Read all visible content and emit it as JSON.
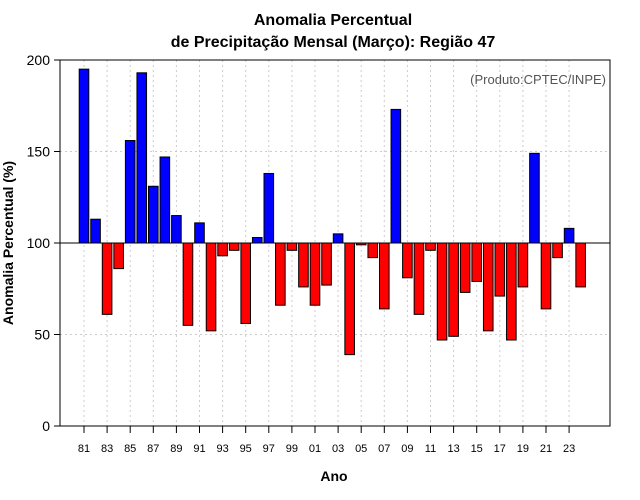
{
  "chart_data": {
    "type": "bar",
    "title": "Anomalia Percentual",
    "subtitle": "de Precipitação Mensal (Março): Região 47",
    "xlabel": "Ano",
    "ylabel": "Anomalia Percentual (%)",
    "credit": "(Produto:CPTEC/INPE)",
    "baseline": 100,
    "ylim": [
      0,
      200
    ],
    "yticks": [
      0,
      50,
      100,
      150,
      200
    ],
    "colors": {
      "above": "#0000ff",
      "below": "#ff0000"
    },
    "categories": [
      "81",
      "82",
      "83",
      "84",
      "85",
      "86",
      "87",
      "88",
      "89",
      "90",
      "91",
      "92",
      "93",
      "94",
      "95",
      "96",
      "97",
      "98",
      "99",
      "00",
      "01",
      "02",
      "03",
      "04",
      "05",
      "06",
      "07",
      "08",
      "09",
      "10",
      "11",
      "12",
      "13",
      "14",
      "15",
      "16",
      "17",
      "18",
      "19",
      "20",
      "21",
      "22",
      "23",
      "24"
    ],
    "tick_labels": [
      "81",
      "83",
      "85",
      "87",
      "89",
      "91",
      "93",
      "95",
      "97",
      "99",
      "01",
      "03",
      "05",
      "07",
      "09",
      "11",
      "13",
      "15",
      "17",
      "19",
      "21",
      "23"
    ],
    "values": [
      195,
      113,
      61,
      86,
      156,
      193,
      131,
      147,
      115,
      55,
      111,
      52,
      93,
      96,
      56,
      103,
      138,
      66,
      96,
      76,
      66,
      77,
      105,
      39,
      99,
      92,
      64,
      173,
      81,
      61,
      96,
      47,
      49,
      73,
      79,
      52,
      71,
      47,
      76,
      149,
      64,
      92,
      108,
      76
    ]
  }
}
